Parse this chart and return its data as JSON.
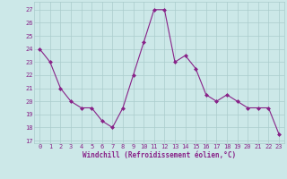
{
  "x": [
    0,
    1,
    2,
    3,
    4,
    5,
    6,
    7,
    8,
    9,
    10,
    11,
    12,
    13,
    14,
    15,
    16,
    17,
    18,
    19,
    20,
    21,
    22,
    23
  ],
  "y": [
    24,
    23,
    21,
    20,
    19.5,
    19.5,
    18.5,
    18,
    19.5,
    22,
    24.5,
    27,
    27,
    23,
    23.5,
    22.5,
    20.5,
    20,
    20.5,
    20,
    19.5,
    19.5,
    19.5,
    17.5
  ],
  "line_color": "#882288",
  "marker_color": "#882288",
  "bg_color": "#cce8e8",
  "grid_color": "#aacccc",
  "ylabel_ticks": [
    17,
    18,
    19,
    20,
    21,
    22,
    23,
    24,
    25,
    26,
    27
  ],
  "ylim": [
    16.8,
    27.6
  ],
  "xlim": [
    -0.5,
    23.5
  ],
  "xlabel": "Windchill (Refroidissement éolien,°C)",
  "xticks": [
    0,
    1,
    2,
    3,
    4,
    5,
    6,
    7,
    8,
    9,
    10,
    11,
    12,
    13,
    14,
    15,
    16,
    17,
    18,
    19,
    20,
    21,
    22,
    23
  ],
  "xlabel_color": "#882288",
  "tick_color": "#882288",
  "tick_fontsize": 5.0,
  "xlabel_fontsize": 5.5
}
